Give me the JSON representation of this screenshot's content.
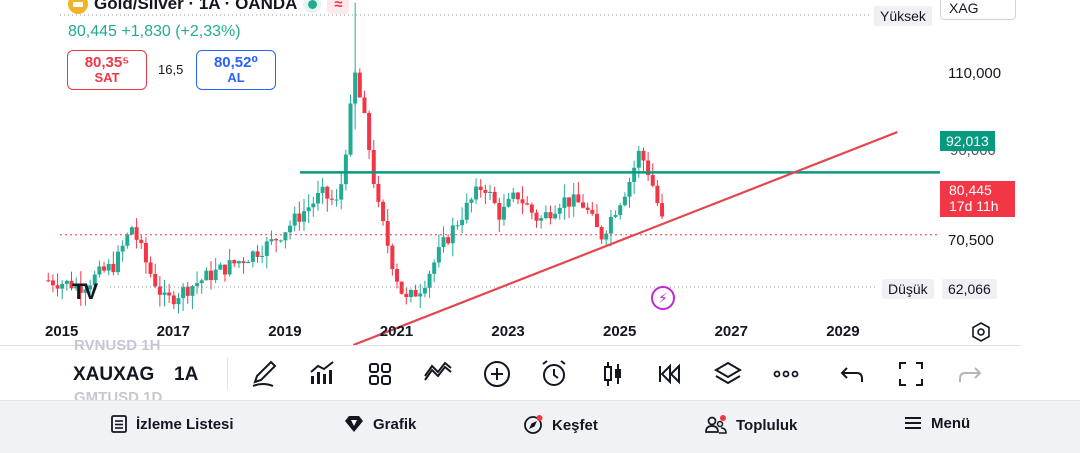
{
  "header": {
    "symbol_title": "Gold/Silver · 1A · OANDA",
    "price_change": "80,445 +1,830 (+2,33%)",
    "sell_price": "80,35⁵",
    "sell_label": "SAT",
    "spread": "16,5",
    "buy_price": "80,52⁰",
    "buy_label": "AL",
    "compare_symbol": "XAG"
  },
  "price_axis": {
    "high_label": "Yüksek",
    "high_value": "110,000",
    "hline_value": "92,013",
    "partial_value": "90,000",
    "last_price": "80,445",
    "countdown": "17d 11h",
    "low_label": "70,500",
    "low_tag": "Düşük",
    "low_value": "62,066"
  },
  "colors": {
    "up": "#22ab94",
    "down": "#f23645",
    "hline": "#089981",
    "trend": "#e2474f",
    "price_tag": "#f23645",
    "accent": "#2962ff"
  },
  "chart_data": {
    "type": "candlestick",
    "x_ticks": [
      "2015",
      "2017",
      "2019",
      "2021",
      "2023",
      "2025",
      "2027",
      "2029"
    ],
    "y_ticks": [
      70.5,
      80.445,
      92.013,
      110.0
    ],
    "ylim": [
      60,
      124
    ],
    "annotations": [
      {
        "type": "horizontal",
        "value": 92.013
      },
      {
        "type": "trendline",
        "from": [
          "2020-03",
          60.0
        ],
        "to": [
          "2029-12",
          99.5
        ]
      }
    ],
    "low": 62.066,
    "last": 80.445,
    "logo": "TV"
  },
  "toolbar": {
    "symbol": "XAUXAG",
    "interval": "1A",
    "ghost_top": "RVNUSD 1H",
    "ghost_bottom": "GMTUSD 1D",
    "icons": [
      "draw-icon",
      "indicators-icon",
      "layouts-icon",
      "trend-tools-icon",
      "add-icon",
      "alert-icon",
      "candles-icon",
      "replay-icon",
      "layers-icon",
      "more-icon",
      "undo-icon",
      "fullscreen-icon",
      "redo-icon"
    ]
  },
  "nav": {
    "watchlist": "İzleme Listesi",
    "chart": "Grafik",
    "explore": "Keşfet",
    "community": "Topluluk",
    "menu": "Menü"
  }
}
